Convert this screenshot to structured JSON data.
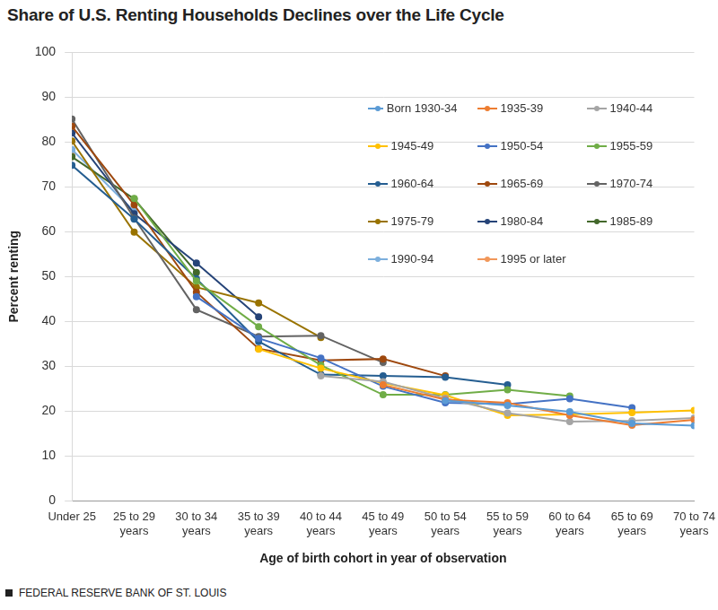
{
  "chart_data": {
    "type": "line",
    "title": "Share of U.S. Renting Households Declines over the Life Cycle",
    "x_label": "Age of birth cohort in year of observation",
    "y_label": "Percent renting",
    "source": "FEDERAL RESERVE BANK OF ST. LOUIS",
    "categories": [
      "Under 25",
      "25 to 29 years",
      "30 to 34 years",
      "35 to 39 years",
      "40 to 44 years",
      "45 to 49 years",
      "50 to 54 years",
      "55 to 59 years",
      "60 to 64 years",
      "65 to 69 years",
      "70 to 74 years"
    ],
    "ylim": [
      0,
      100
    ],
    "yticks": [
      0,
      10,
      20,
      30,
      40,
      50,
      60,
      70,
      80,
      90,
      100
    ],
    "grid": true,
    "legend": "upper right",
    "marker": "circle",
    "series": [
      {
        "name": "Born 1930-34",
        "color": "#5b9bd5",
        "values": [
          null,
          null,
          null,
          null,
          null,
          null,
          22.3,
          21.2,
          19.8,
          17.2,
          16.7
        ]
      },
      {
        "name": "1935-39",
        "color": "#ed7d31",
        "values": [
          null,
          null,
          null,
          null,
          null,
          25.8,
          22.5,
          21.8,
          19.0,
          16.8,
          18.0
        ]
      },
      {
        "name": "1940-44",
        "color": "#a5a5a5",
        "values": [
          null,
          null,
          null,
          null,
          27.8,
          26.5,
          22.8,
          19.5,
          17.6,
          17.8,
          18.4
        ]
      },
      {
        "name": "1945-49",
        "color": "#ffc000",
        "values": [
          null,
          null,
          null,
          33.8,
          29.5,
          26.2,
          23.5,
          19.0,
          19.2,
          19.6,
          20.1
        ]
      },
      {
        "name": "1950-54",
        "color": "#4472c4",
        "values": [
          null,
          null,
          45.5,
          36.2,
          31.8,
          25.5,
          21.8,
          21.5,
          22.7,
          20.7,
          null
        ]
      },
      {
        "name": "1955-59",
        "color": "#70ad47",
        "values": [
          null,
          67.4,
          49.0,
          38.8,
          30.2,
          23.6,
          23.6,
          24.7,
          23.3,
          null,
          null
        ]
      },
      {
        "name": "1960-64",
        "color": "#255e91",
        "values": [
          74.8,
          62.8,
          49.5,
          35.5,
          28.1,
          27.8,
          27.5,
          25.8,
          null,
          null,
          null
        ]
      },
      {
        "name": "1965-69",
        "color": "#9e480e",
        "values": [
          83.5,
          66.0,
          46.5,
          33.9,
          31.3,
          31.6,
          27.8,
          null,
          null,
          null,
          null
        ]
      },
      {
        "name": "1970-74",
        "color": "#636363",
        "values": [
          85.1,
          63.0,
          42.6,
          36.6,
          36.8,
          30.8,
          null,
          null,
          null,
          null,
          null
        ]
      },
      {
        "name": "1975-79",
        "color": "#997300",
        "values": [
          80.2,
          59.9,
          47.6,
          44.1,
          36.4,
          null,
          null,
          null,
          null,
          null,
          null
        ]
      },
      {
        "name": "1980-84",
        "color": "#264478",
        "values": [
          82.0,
          64.0,
          53.0,
          41.0,
          null,
          null,
          null,
          null,
          null,
          null,
          null
        ]
      },
      {
        "name": "1985-89",
        "color": "#43682b",
        "values": [
          76.7,
          67.3,
          50.9,
          null,
          null,
          null,
          null,
          null,
          null,
          null,
          null
        ]
      },
      {
        "name": "1990-94",
        "color": "#7cafdd",
        "values": [
          78.3,
          64.5,
          null,
          null,
          null,
          null,
          null,
          null,
          null,
          null,
          null
        ]
      },
      {
        "name": "1995 or later",
        "color": "#f1975a",
        "values": [
          77.0,
          null,
          null,
          null,
          null,
          null,
          null,
          null,
          null,
          null,
          null
        ]
      }
    ]
  }
}
